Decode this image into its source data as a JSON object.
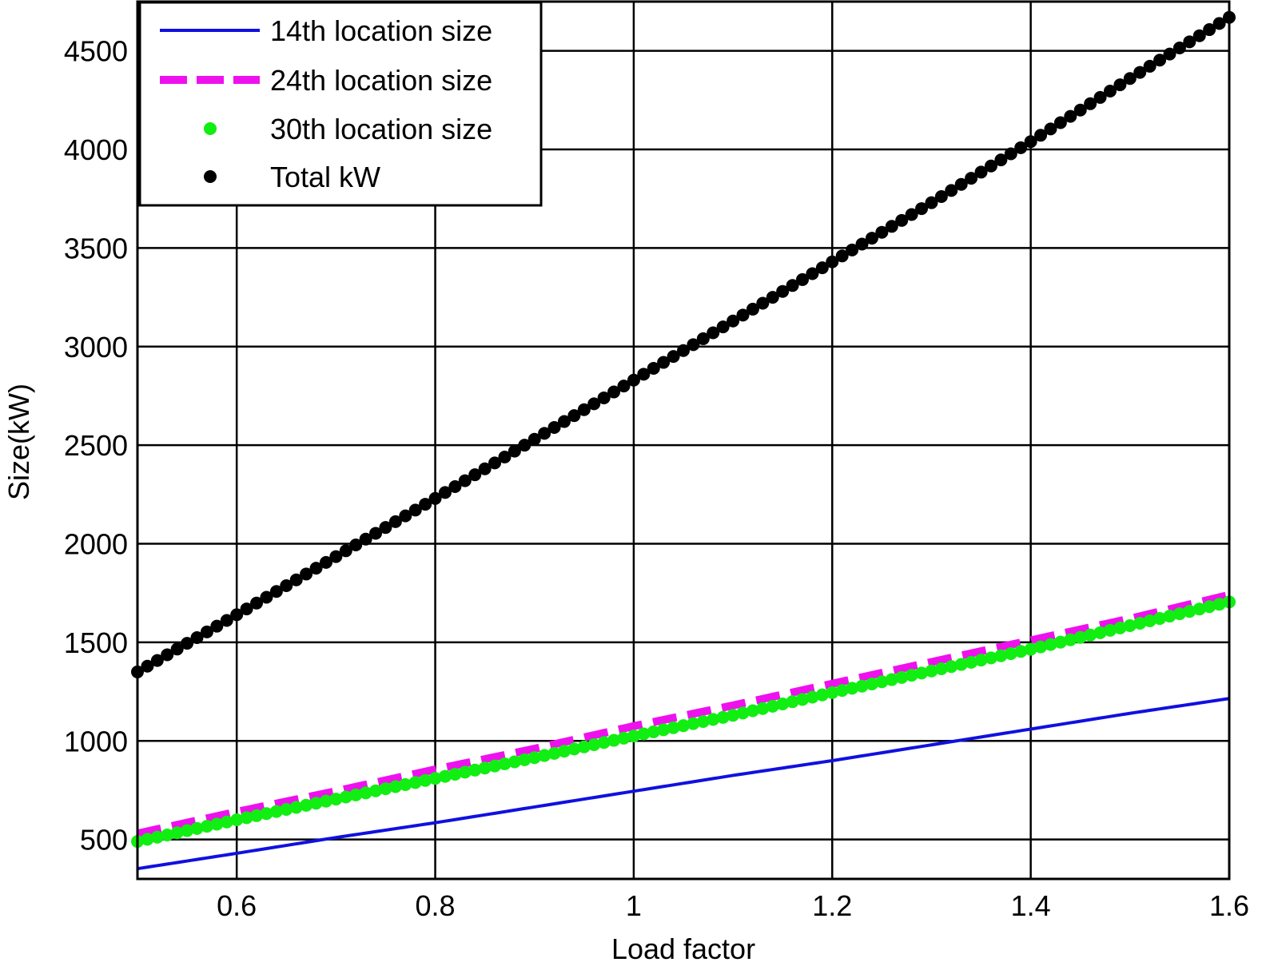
{
  "chart_data": {
    "type": "line",
    "title": "",
    "xlabel": "Load factor",
    "ylabel": "Size(kW)",
    "xlim": [
      0.5,
      1.6
    ],
    "ylim": [
      300,
      4750
    ],
    "xticks": [
      0.6,
      0.8,
      1,
      1.2,
      1.4,
      1.6
    ],
    "xtick_labels": [
      "0.6",
      "0.8",
      "1",
      "1.2",
      "1.4",
      "1.6"
    ],
    "yticks": [
      500,
      1000,
      1500,
      2000,
      2500,
      3000,
      3500,
      4000,
      4500
    ],
    "ytick_labels": [
      "500",
      "1000",
      "1500",
      "2000",
      "2500",
      "3000",
      "3500",
      "4000",
      "4500"
    ],
    "grid": true,
    "legend_position": "top-left",
    "x": [
      0.5,
      0.6,
      0.7,
      0.8,
      0.9,
      1.0,
      1.1,
      1.2,
      1.3,
      1.4,
      1.5,
      1.6
    ],
    "series": [
      {
        "name": "14th location size",
        "style": "solid-line",
        "color": "#1010e0",
        "values": [
          352,
          430,
          510,
          585,
          665,
          745,
          825,
          900,
          980,
          1060,
          1140,
          1215
        ]
      },
      {
        "name": "24th location size",
        "style": "dashed-line",
        "color": "#ee11ee",
        "values": [
          530,
          640,
          745,
          855,
          960,
          1075,
          1180,
          1290,
          1400,
          1510,
          1620,
          1740
        ]
      },
      {
        "name": "30th location size",
        "style": "markers",
        "color": "#11ee11",
        "values": [
          490,
          600,
          705,
          810,
          915,
          1025,
          1130,
          1245,
          1355,
          1465,
          1585,
          1705
        ]
      },
      {
        "name": "Total kW",
        "style": "markers",
        "color": "#000000",
        "values": [
          1350,
          1640,
          1935,
          2230,
          2530,
          2830,
          3130,
          3430,
          3730,
          4040,
          4360,
          4670
        ]
      }
    ]
  }
}
